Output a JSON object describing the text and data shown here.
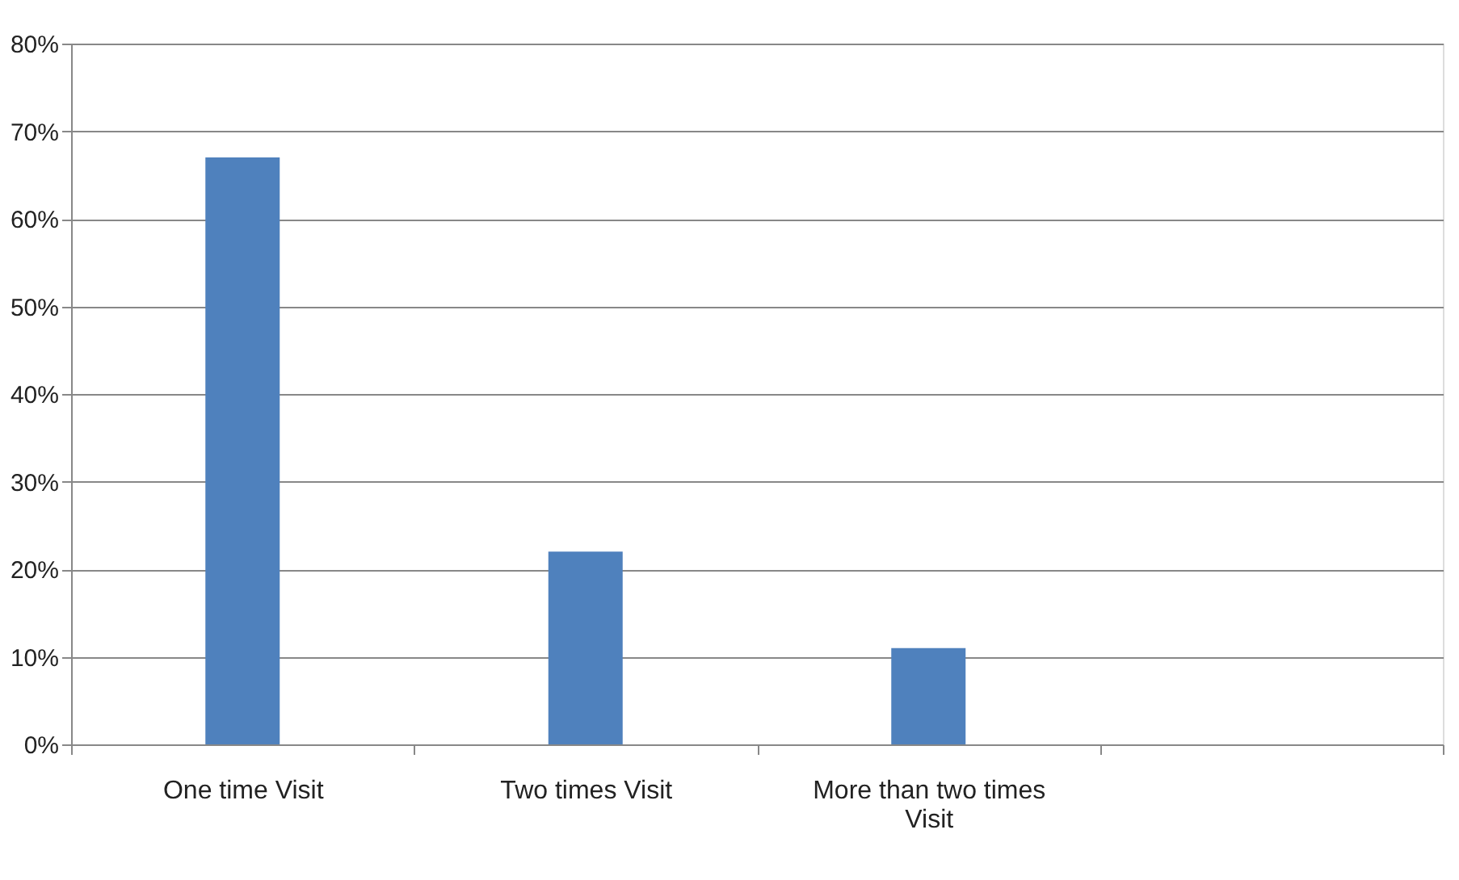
{
  "chart_data": {
    "type": "bar",
    "categories": [
      "One time Visit",
      "Two times Visit",
      "More than two times Visit",
      null
    ],
    "values": [
      67,
      22,
      11,
      null
    ],
    "color": "#4f81bd",
    "ylim": [
      0,
      80
    ],
    "yticks": [
      {
        "value": 0,
        "label": "0%"
      },
      {
        "value": 10,
        "label": "10%"
      },
      {
        "value": 20,
        "label": "20%"
      },
      {
        "value": 30,
        "label": "30%"
      },
      {
        "value": 40,
        "label": "40%"
      },
      {
        "value": 50,
        "label": "50%"
      },
      {
        "value": 60,
        "label": "60%"
      },
      {
        "value": 70,
        "label": "70%"
      },
      {
        "value": 80,
        "label": "80%"
      }
    ],
    "grid": "y"
  }
}
